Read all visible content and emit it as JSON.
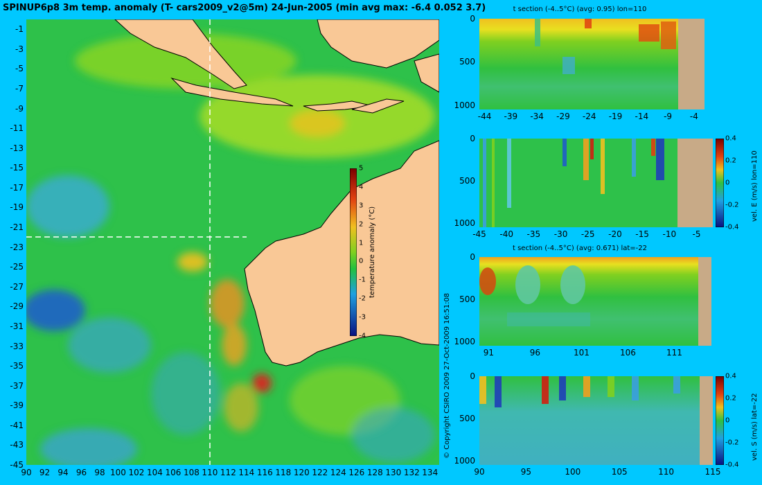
{
  "title": "SPINUP6p8 3m temp. anomaly (T- cars2009_v2@5m) 24-Jun-2005 (min avg max: -6.4 0.052 3.7)",
  "copyright": "© Copyright CSIRO 2009   27-Oct-2009 16:51:08",
  "colors": {
    "background": "#00c8ff",
    "land": "#f9c896",
    "bottom": "#c8aa87",
    "ocean_base": "#2ec14a",
    "warm": "#f08a1c",
    "cold": "#3aa0e0"
  },
  "chart_data": [
    {
      "type": "heatmap",
      "name": "map",
      "title": "SPINUP6p8 3m temp. anomaly (T- cars2009_v2@5m) 24-Jun-2005 (min avg max: -6.4 0.052 3.7)",
      "xlabel": "",
      "ylabel": "",
      "x_ticks": [
        "90",
        "92",
        "94",
        "96",
        "98",
        "100",
        "102",
        "104",
        "106",
        "108",
        "110",
        "112",
        "114",
        "116",
        "118",
        "120",
        "122",
        "124",
        "126",
        "128",
        "130",
        "132",
        "134"
      ],
      "y_ticks": [
        "-1",
        "-3",
        "-5",
        "-7",
        "-9",
        "-11",
        "-13",
        "-15",
        "-17",
        "-19",
        "-21",
        "-23",
        "-25",
        "-27",
        "-29",
        "-31",
        "-33",
        "-35",
        "-37",
        "-39",
        "-41",
        "-43",
        "-45"
      ],
      "xlim": [
        90,
        135
      ],
      "ylim": [
        -45,
        0
      ],
      "section_lon": 110,
      "section_lat": -22,
      "colorbar": {
        "label": "temperature anomaly (°C)",
        "ticks": [
          "5",
          "4",
          "3",
          "2",
          "1",
          "0",
          "-1",
          "-2",
          "-3",
          "-4"
        ],
        "range": [
          -4,
          5
        ]
      }
    },
    {
      "type": "heatmap",
      "name": "t-section-lon110",
      "title": "t section (-4..5°C) (avg: 0.95) lon=110",
      "x_ticks": [
        "-44",
        "-39",
        "-34",
        "-29",
        "-24",
        "-19",
        "-14",
        "-9",
        "-4"
      ],
      "y_ticks": [
        "0",
        "500",
        "1000"
      ],
      "xlim": [
        -45,
        -2
      ],
      "ylim": [
        1050,
        0
      ]
    },
    {
      "type": "heatmap",
      "name": "vel-e-section-lon110",
      "title": "",
      "x_ticks": [
        "-45",
        "-40",
        "-35",
        "-30",
        "-25",
        "-20",
        "-15",
        "-10",
        "-5"
      ],
      "y_ticks": [
        "0",
        "500",
        "1000"
      ],
      "xlim": [
        -45,
        -2
      ],
      "ylim": [
        1050,
        0
      ],
      "colorbar": {
        "label": "vel. E (m/s) lon=110",
        "ticks": [
          "0.4",
          "0.2",
          "0",
          "-0.2",
          "-0.4"
        ],
        "range": [
          -0.4,
          0.4
        ]
      }
    },
    {
      "type": "heatmap",
      "name": "t-section-lat-22",
      "title": "t section (-4..5°C) (avg: 0.671) lat=-22",
      "x_ticks": [
        "91",
        "96",
        "101",
        "106",
        "111"
      ],
      "y_ticks": [
        "0",
        "500",
        "1000"
      ],
      "xlim": [
        90,
        115
      ],
      "ylim": [
        1050,
        0
      ]
    },
    {
      "type": "heatmap",
      "name": "vel-s-section-lat-22",
      "title": "",
      "x_ticks": [
        "90",
        "95",
        "100",
        "105",
        "110",
        "115"
      ],
      "y_ticks": [
        "0",
        "500",
        "1000"
      ],
      "xlim": [
        90,
        115
      ],
      "ylim": [
        1050,
        0
      ],
      "colorbar": {
        "label": "vel. S (m/s) lat=-22",
        "ticks": [
          "0.4",
          "0.2",
          "0",
          "-0.2",
          "-0.4"
        ],
        "range": [
          -0.4,
          0.4
        ]
      }
    }
  ]
}
